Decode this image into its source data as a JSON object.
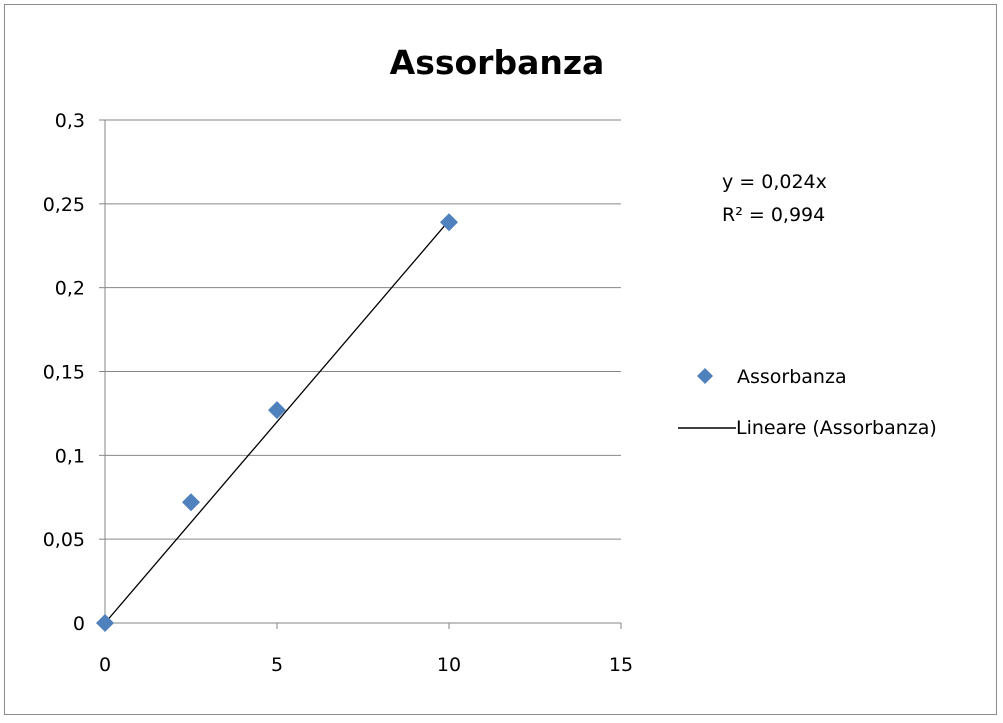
{
  "chart_data": {
    "type": "scatter",
    "title": "Assorbanza",
    "xlabel": "",
    "ylabel": "",
    "xlim": [
      0,
      15
    ],
    "ylim": [
      0,
      0.3
    ],
    "x_ticks": [
      "0",
      "5",
      "10",
      "15"
    ],
    "y_ticks": [
      "0",
      "0,05",
      "0,1",
      "0,15",
      "0,2",
      "0,25",
      "0,3"
    ],
    "grid": "horizontal",
    "legend_position": "right",
    "series": [
      {
        "name": "Assorbanza",
        "marker": "diamond",
        "color": "#4f81bd",
        "x": [
          0,
          2.5,
          5,
          10
        ],
        "y": [
          0,
          0.072,
          0.127,
          0.239
        ]
      }
    ],
    "trendline": {
      "name": "Lineare (Assorbanza)",
      "type": "linear",
      "slope": 0.024,
      "intercept": 0,
      "x_range": [
        0,
        10
      ],
      "color": "#000000",
      "equation": "y = 0,024x",
      "r_squared": "R² = 0,994"
    }
  }
}
